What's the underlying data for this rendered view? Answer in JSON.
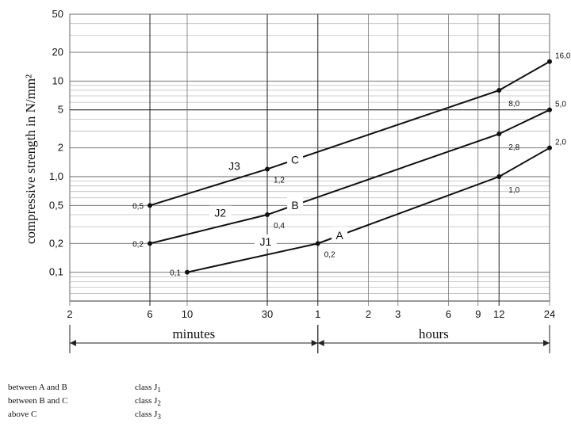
{
  "chart_data": {
    "type": "line",
    "y_scale": "log",
    "ylabel": "compressive strength in N/mm²",
    "ylim": [
      0.05,
      50
    ],
    "y_ticks": [
      "50",
      "20",
      "10",
      "5",
      "2",
      "1,0",
      "0,5",
      "0,2",
      "0,1"
    ],
    "y_tick_values": [
      50,
      20,
      10,
      5,
      2,
      1,
      0.5,
      0.2,
      0.1
    ],
    "x_scale": "log",
    "x_unit": "minutes",
    "xlim": [
      2,
      1440
    ],
    "x_ticks": [
      "2",
      "6",
      "10",
      "30",
      "1",
      "2",
      "3",
      "6",
      "9",
      "12",
      "24"
    ],
    "x_tick_values": [
      2,
      6,
      10,
      30,
      60,
      120,
      180,
      360,
      540,
      720,
      1440
    ],
    "time_spans": [
      {
        "label": "minutes",
        "from": 2,
        "to": 60
      },
      {
        "label": "hours",
        "from": 60,
        "to": 1440
      }
    ],
    "series": [
      {
        "name": "J1",
        "x": [
          10,
          60,
          720,
          1440
        ],
        "values": [
          0.1,
          0.2,
          1.0,
          2.0
        ],
        "point_labels": [
          "0,1",
          "0,2",
          "1,0",
          "2,0"
        ],
        "curve_label": "A"
      },
      {
        "name": "J2",
        "x": [
          6,
          30,
          720,
          1440
        ],
        "values": [
          0.2,
          0.4,
          2.8,
          5.0
        ],
        "point_labels": [
          "0,2",
          "0,4",
          "2,8",
          "5,0"
        ],
        "curve_label": "B"
      },
      {
        "name": "J3",
        "x": [
          6,
          30,
          720,
          1440
        ],
        "values": [
          0.5,
          1.2,
          8.0,
          16.0
        ],
        "point_labels": [
          "0,5",
          "1,2",
          "8,0",
          "16,0"
        ],
        "curve_label": "C"
      }
    ],
    "grid": true,
    "legend": [
      {
        "range": "between A and B",
        "class": "class J",
        "sub": "1"
      },
      {
        "range": "between B and C",
        "class": "class J",
        "sub": "2"
      },
      {
        "range": "above C",
        "class": "class J",
        "sub": "3"
      }
    ]
  }
}
